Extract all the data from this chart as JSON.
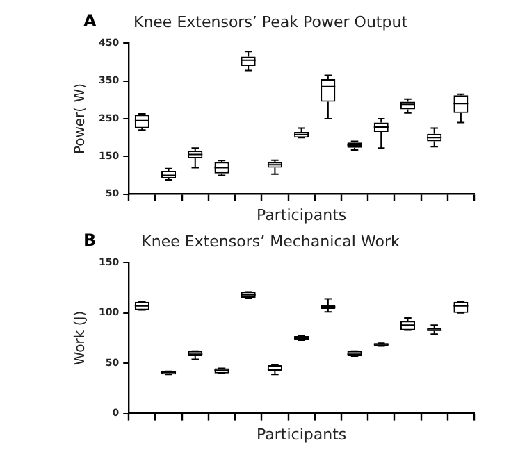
{
  "chart_data": [
    {
      "type": "box",
      "title": "Knee Extensors’ Peak Power Output",
      "xlabel": "Participants",
      "ylabel": "Power( W)",
      "annotations": [
        "A"
      ],
      "tick_labels": "y",
      "grid": false,
      "categories": [
        null,
        null,
        null,
        null,
        null,
        null,
        null,
        null,
        null,
        null,
        null,
        null,
        null
      ],
      "ylim": [
        50,
        450
      ],
      "yticks": [
        50,
        150,
        250,
        350,
        450
      ],
      "boxes": [
        {
          "low": 220,
          "q1": 225,
          "median": 245,
          "q3": 260,
          "high": 263
        },
        {
          "low": 88,
          "q1": 92,
          "median": 100,
          "q3": 112,
          "high": 118
        },
        {
          "low": 120,
          "q1": 145,
          "median": 155,
          "q3": 165,
          "high": 172
        },
        {
          "low": 100,
          "q1": 105,
          "median": 120,
          "q3": 135,
          "high": 139
        },
        {
          "low": 378,
          "q1": 390,
          "median": 405,
          "q3": 415,
          "high": 428
        },
        {
          "low": 103,
          "q1": 120,
          "median": 128,
          "q3": 135,
          "high": 140
        },
        {
          "low": 200,
          "q1": 200,
          "median": 208,
          "q3": 215,
          "high": 225
        },
        {
          "low": 250,
          "q1": 295,
          "median": 335,
          "q3": 355,
          "high": 365
        },
        {
          "low": 167,
          "q1": 173,
          "median": 180,
          "q3": 187,
          "high": 190
        },
        {
          "low": 172,
          "q1": 215,
          "median": 228,
          "q3": 240,
          "high": 250
        },
        {
          "low": 265,
          "q1": 275,
          "median": 288,
          "q3": 295,
          "high": 302
        },
        {
          "low": 176,
          "q1": 190,
          "median": 200,
          "q3": 210,
          "high": 225
        },
        {
          "low": 240,
          "q1": 265,
          "median": 290,
          "q3": 312,
          "high": 315
        }
      ]
    },
    {
      "type": "box",
      "title": "Knee Extensors’ Mechanical Work",
      "xlabel": "Participants",
      "ylabel": "Work (J)",
      "annotations": [
        "B"
      ],
      "tick_labels": "y",
      "grid": false,
      "categories": [
        null,
        null,
        null,
        null,
        null,
        null,
        null,
        null,
        null,
        null,
        null,
        null,
        null
      ],
      "ylim": [
        0,
        150
      ],
      "yticks": [
        0,
        50,
        100,
        150
      ],
      "boxes": [
        {
          "low": 103,
          "q1": 103,
          "median": 107,
          "q3": 111,
          "high": 111
        },
        {
          "low": 39,
          "q1": 39,
          "median": 41,
          "q3": 42,
          "high": 42
        },
        {
          "low": 54,
          "q1": 57,
          "median": 59,
          "q3": 62,
          "high": 62
        },
        {
          "low": 40,
          "q1": 40,
          "median": 43,
          "q3": 45,
          "high": 45
        },
        {
          "low": 115,
          "q1": 115,
          "median": 118,
          "q3": 121,
          "high": 121
        },
        {
          "low": 39,
          "q1": 42,
          "median": 44,
          "q3": 48,
          "high": 48
        },
        {
          "low": 73,
          "q1": 73,
          "median": 75,
          "q3": 77,
          "high": 77
        },
        {
          "low": 101,
          "q1": 104,
          "median": 106,
          "q3": 108,
          "high": 114
        },
        {
          "low": 57,
          "q1": 57,
          "median": 59,
          "q3": 62,
          "high": 62
        },
        {
          "low": 67,
          "q1": 67,
          "median": 69,
          "q3": 70,
          "high": 70
        },
        {
          "low": 83,
          "q1": 83,
          "median": 88,
          "q3": 92,
          "high": 95
        },
        {
          "low": 79,
          "q1": 82,
          "median": 83,
          "q3": 85,
          "high": 88
        },
        {
          "low": 100,
          "q1": 100,
          "median": 107,
          "q3": 111,
          "high": 111
        }
      ]
    }
  ]
}
